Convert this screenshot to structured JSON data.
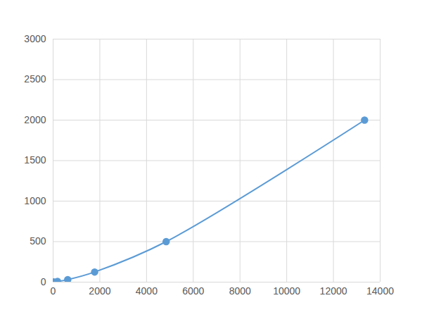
{
  "chart_data": {
    "type": "line",
    "x": [
      30,
      190,
      625,
      1778,
      4840,
      13333
    ],
    "values": [
      2,
      8,
      31,
      125,
      500,
      2000
    ],
    "color": "#5b9bd5",
    "marker": "circle",
    "line_style": "solid",
    "xlim": [
      0,
      14000
    ],
    "xticks": [
      0,
      2000,
      4000,
      6000,
      8000,
      10000,
      12000,
      14000
    ],
    "ylim": [
      0,
      3000
    ],
    "yticks": [
      0,
      500,
      1000,
      1500,
      2000,
      2500,
      3000
    ],
    "grid": true
  }
}
